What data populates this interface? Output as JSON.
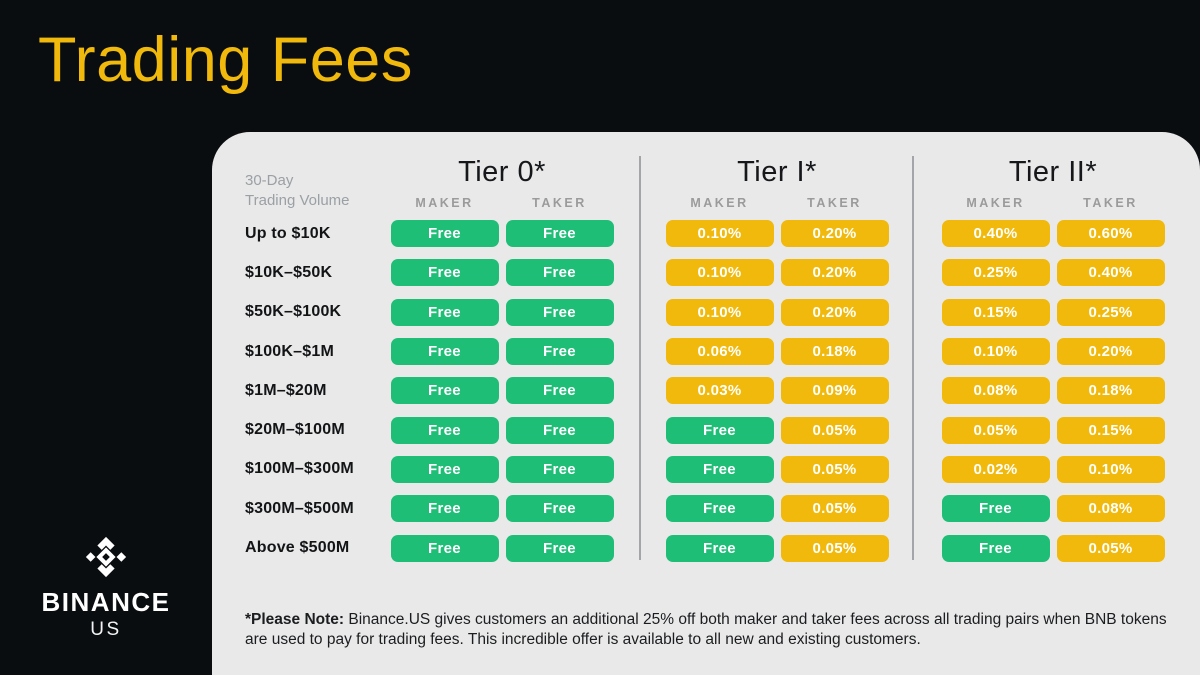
{
  "title": "Trading Fees",
  "brand": {
    "name": "BINANCE",
    "sub": "US",
    "logo_icon": "binance-diamond-logo"
  },
  "colors": {
    "background": "#0A0D10",
    "panel": "#E9E9EA",
    "accent_gold": "#F0B90B",
    "free_green": "#1FBE77",
    "pill_text": "#FFFFFF"
  },
  "table": {
    "volume_header_line1": "30-Day",
    "volume_header_line2": "Trading Volume",
    "tiers": [
      {
        "name": "Tier 0*",
        "maker_label": "MAKER",
        "taker_label": "TAKER"
      },
      {
        "name": "Tier I*",
        "maker_label": "MAKER",
        "taker_label": "TAKER"
      },
      {
        "name": "Tier II*",
        "maker_label": "MAKER",
        "taker_label": "TAKER"
      }
    ],
    "rows": [
      {
        "label": "Up to $10K",
        "fees": [
          "Free",
          "Free",
          "0.10%",
          "0.20%",
          "0.40%",
          "0.60%"
        ]
      },
      {
        "label": "$10K–$50K",
        "fees": [
          "Free",
          "Free",
          "0.10%",
          "0.20%",
          "0.25%",
          "0.40%"
        ]
      },
      {
        "label": "$50K–$100K",
        "fees": [
          "Free",
          "Free",
          "0.10%",
          "0.20%",
          "0.15%",
          "0.25%"
        ]
      },
      {
        "label": "$100K–$1M",
        "fees": [
          "Free",
          "Free",
          "0.06%",
          "0.18%",
          "0.10%",
          "0.20%"
        ]
      },
      {
        "label": "$1M–$20M",
        "fees": [
          "Free",
          "Free",
          "0.03%",
          "0.09%",
          "0.08%",
          "0.18%"
        ]
      },
      {
        "label": "$20M–$100M",
        "fees": [
          "Free",
          "Free",
          "Free",
          "0.05%",
          "0.05%",
          "0.15%"
        ]
      },
      {
        "label": "$100M–$300M",
        "fees": [
          "Free",
          "Free",
          "Free",
          "0.05%",
          "0.02%",
          "0.10%"
        ]
      },
      {
        "label": "$300M–$500M",
        "fees": [
          "Free",
          "Free",
          "Free",
          "0.05%",
          "Free",
          "0.08%"
        ]
      },
      {
        "label": "Above $500M",
        "fees": [
          "Free",
          "Free",
          "Free",
          "0.05%",
          "Free",
          "0.05%"
        ]
      }
    ]
  },
  "note": {
    "bold": "*Please Note:",
    "text": "Binance.US gives customers an additional 25% off both maker and taker fees across all trading pairs when BNB tokens are used to pay for trading fees. This incredible offer is available to all new and existing customers."
  }
}
